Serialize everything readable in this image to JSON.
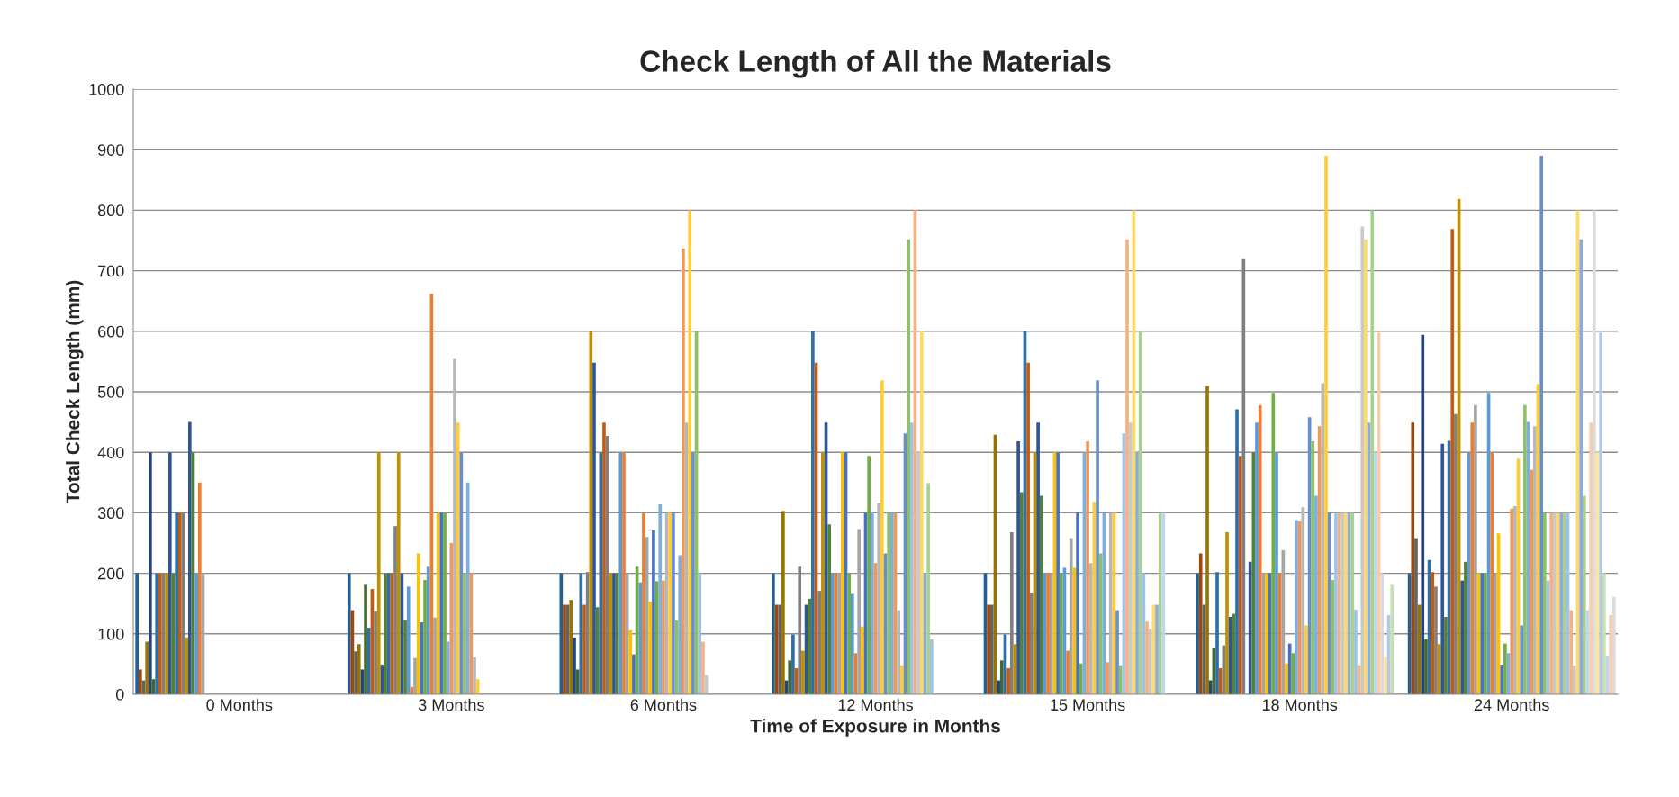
{
  "chart_data": {
    "type": "bar",
    "title": "Check Length of All the Materials",
    "xlabel": "Time of Exposure in Months",
    "ylabel": "Total Check Length (mm)",
    "categories": [
      "0 Months",
      "3 Months",
      "6 Months",
      "12 Months",
      "15 Months",
      "18 Months",
      "24 Months"
    ],
    "ylim": [
      0,
      1000
    ],
    "yticks": [
      0,
      100,
      200,
      300,
      400,
      500,
      600,
      700,
      800,
      900,
      1000
    ],
    "grid": "y",
    "legend": false,
    "series": [
      {
        "color": "#255e91",
        "values": [
          200,
          200,
          200,
          200,
          200,
          200,
          200
        ]
      },
      {
        "color": "#9e480e",
        "values": [
          41,
          139,
          148,
          148,
          148,
          233,
          449
        ]
      },
      {
        "color": "#636363",
        "values": [
          23,
          71,
          148,
          148,
          148,
          148,
          258
        ]
      },
      {
        "color": "#997300",
        "values": [
          87,
          83,
          156,
          303,
          429,
          509,
          148
        ]
      },
      {
        "color": "#264478",
        "values": [
          400,
          41,
          94,
          23,
          23,
          23,
          594
        ]
      },
      {
        "color": "#43682b",
        "values": [
          25,
          181,
          41,
          56,
          56,
          76,
          91
        ]
      },
      {
        "color": "#2f6fa8",
        "values": [
          200,
          110,
          200,
          99,
          99,
          202,
          222
        ]
      },
      {
        "color": "#c55a11",
        "values": [
          200,
          174,
          148,
          43,
          43,
          43,
          202
        ]
      },
      {
        "color": "#7f7f7f",
        "values": [
          200,
          137,
          202,
          211,
          268,
          81,
          178
        ]
      },
      {
        "color": "#bf9000",
        "values": [
          200,
          400,
          600,
          72,
          83,
          268,
          83
        ]
      },
      {
        "color": "#2f5597",
        "values": [
          400,
          49,
          548,
          148,
          418,
          128,
          414
        ]
      },
      {
        "color": "#548235",
        "values": [
          200,
          200,
          144,
          158,
          334,
          133,
          128
        ]
      },
      {
        "color": "#2f6fa8",
        "values": [
          300,
          200,
          400,
          600,
          600,
          471,
          419
        ]
      },
      {
        "color": "#c55a11",
        "values": [
          300,
          200,
          449,
          548,
          548,
          394,
          769
        ]
      },
      {
        "color": "#7f7f7f",
        "values": [
          300,
          278,
          427,
          171,
          168,
          719,
          463
        ]
      },
      {
        "color": "#bf9000",
        "values": [
          94,
          400,
          200,
          400,
          400,
          null,
          819
        ]
      },
      {
        "color": "#2f5597",
        "values": [
          450,
          200,
          200,
          449,
          449,
          219,
          188
        ]
      },
      {
        "color": "#548235",
        "values": [
          400,
          123,
          200,
          281,
          328,
          400,
          219
        ]
      },
      {
        "color": "#5b9bd5",
        "values": [
          200,
          178,
          400,
          200,
          200,
          449,
          399
        ]
      },
      {
        "color": "#ed7d31",
        "values": [
          350,
          12,
          400,
          200,
          200,
          478,
          449
        ]
      },
      {
        "color": "#a5a5a5",
        "values": [
          200,
          60,
          200,
          200,
          200,
          200,
          478
        ]
      },
      {
        "color": "#ffc000",
        "values": [
          null,
          233,
          106,
          400,
          400,
          200,
          200
        ]
      },
      {
        "color": "#4472c4",
        "values": [
          null,
          119,
          66,
          400,
          400,
          200,
          200
        ]
      },
      {
        "color": "#70ad47",
        "values": [
          null,
          189,
          211,
          200,
          200,
          498,
          200
        ]
      },
      {
        "color": "#5b9bd5",
        "values": [
          null,
          211,
          185,
          166,
          209,
          400,
          498
        ]
      },
      {
        "color": "#ed7d31",
        "values": [
          null,
          662,
          300,
          68,
          72,
          200,
          400
        ]
      },
      {
        "color": "#a5a5a5",
        "values": [
          null,
          127,
          260,
          273,
          258,
          238,
          200
        ]
      },
      {
        "color": "#ffc000",
        "values": [
          null,
          300,
          153,
          112,
          209,
          51,
          266
        ]
      },
      {
        "color": "#4472c4",
        "values": [
          null,
          300,
          271,
          300,
          300,
          84,
          49
        ]
      },
      {
        "color": "#70ad47",
        "values": [
          null,
          300,
          187,
          394,
          51,
          68,
          84
        ]
      },
      {
        "color": "#7cafdd",
        "values": [
          null,
          87,
          314,
          301,
          400,
          288,
          68
        ]
      },
      {
        "color": "#f1975a",
        "values": [
          null,
          250,
          188,
          217,
          418,
          286,
          307
        ]
      },
      {
        "color": "#b7b7b7",
        "values": [
          null,
          554,
          300,
          316,
          217,
          309,
          311
        ]
      },
      {
        "color": "#ffcd33",
        "values": [
          null,
          449,
          300,
          519,
          318,
          114,
          389
        ]
      },
      {
        "color": "#698ed0",
        "values": [
          null,
          400,
          300,
          233,
          519,
          458,
          114
        ]
      },
      {
        "color": "#8cc168",
        "values": [
          null,
          200,
          122,
          300,
          233,
          418,
          478
        ]
      },
      {
        "color": "#7cafdd",
        "values": [
          null,
          350,
          230,
          300,
          300,
          328,
          450
        ]
      },
      {
        "color": "#f1975a",
        "values": [
          null,
          200,
          737,
          300,
          53,
          443,
          371
        ]
      },
      {
        "color": "#b7b7b7",
        "values": [
          null,
          61,
          449,
          139,
          300,
          514,
          443
        ]
      },
      {
        "color": "#ffcd33",
        "values": [
          null,
          25,
          800,
          48,
          300,
          890,
          513
        ]
      },
      {
        "color": "#698ed0",
        "values": [
          null,
          null,
          400,
          431,
          139,
          300,
          890
        ]
      },
      {
        "color": "#8cc168",
        "values": [
          null,
          null,
          600,
          752,
          48,
          189,
          300
        ]
      },
      {
        "color": "#9dc3e6",
        "values": [
          null,
          null,
          200,
          449,
          431,
          300,
          188
        ]
      },
      {
        "color": "#f4b183",
        "values": [
          null,
          null,
          87,
          800,
          752,
          300,
          300
        ]
      },
      {
        "color": "#c9c9c9",
        "values": [
          null,
          null,
          32,
          400,
          449,
          300,
          300
        ]
      },
      {
        "color": "#ffd966",
        "values": [
          null,
          null,
          null,
          600,
          800,
          300,
          300
        ]
      },
      {
        "color": "#8faadc",
        "values": [
          null,
          null,
          null,
          200,
          400,
          300,
          300
        ]
      },
      {
        "color": "#a9d18e",
        "values": [
          null,
          null,
          null,
          349,
          600,
          300,
          300
        ]
      },
      {
        "color": "#9dc3e6",
        "values": [
          null,
          null,
          null,
          91,
          200,
          140,
          300
        ]
      },
      {
        "color": "#f4b183",
        "values": [
          null,
          null,
          null,
          null,
          120,
          48,
          139
        ]
      },
      {
        "color": "#c9c9c9",
        "values": [
          null,
          null,
          null,
          null,
          108,
          773,
          48
        ]
      },
      {
        "color": "#ffd966",
        "values": [
          null,
          null,
          null,
          null,
          148,
          752,
          800
        ]
      },
      {
        "color": "#8faadc",
        "values": [
          null,
          null,
          null,
          null,
          148,
          449,
          752
        ]
      },
      {
        "color": "#a9d18e",
        "values": [
          null,
          null,
          null,
          null,
          300,
          800,
          328
        ]
      },
      {
        "color": "#bdd7ee",
        "values": [
          null,
          null,
          null,
          null,
          300,
          400,
          139
        ]
      },
      {
        "color": "#f8cbad",
        "values": [
          null,
          null,
          null,
          null,
          null,
          598,
          449
        ]
      },
      {
        "color": "#dbdbdb",
        "values": [
          null,
          null,
          null,
          null,
          null,
          200,
          800
        ]
      },
      {
        "color": "#ffe699",
        "values": [
          null,
          null,
          null,
          null,
          null,
          62,
          400
        ]
      },
      {
        "color": "#b4c7e7",
        "values": [
          null,
          null,
          null,
          null,
          null,
          131,
          598
        ]
      },
      {
        "color": "#c5e0b4",
        "values": [
          null,
          null,
          null,
          null,
          null,
          181,
          200
        ]
      },
      {
        "color": "#bdd7ee",
        "values": [
          null,
          null,
          null,
          null,
          null,
          null,
          64
        ]
      },
      {
        "color": "#f8cbad",
        "values": [
          null,
          null,
          null,
          null,
          null,
          null,
          131
        ]
      },
      {
        "color": "#dbdbdb",
        "values": [
          null,
          null,
          null,
          null,
          null,
          null,
          161
        ]
      }
    ]
  }
}
